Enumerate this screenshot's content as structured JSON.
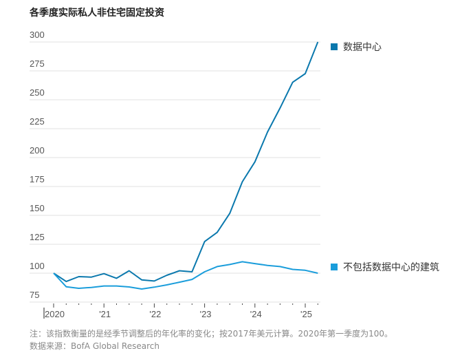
{
  "chart_data": {
    "type": "line",
    "title": "各季度实际私人非住宅固定投资",
    "xlabel": "",
    "ylabel": "",
    "ylim": [
      75,
      300
    ],
    "yticks": [
      75,
      100,
      125,
      150,
      175,
      200,
      225,
      250,
      275,
      300
    ],
    "xtick_labels": [
      "2020",
      "'21",
      "'22",
      "'23",
      "'24",
      "'25"
    ],
    "x": [
      "2020Q1",
      "2020Q2",
      "2020Q3",
      "2020Q4",
      "2021Q1",
      "2021Q2",
      "2021Q3",
      "2021Q4",
      "2022Q1",
      "2022Q2",
      "2022Q3",
      "2022Q4",
      "2023Q1",
      "2023Q2",
      "2023Q3",
      "2023Q4",
      "2024Q1",
      "2024Q2",
      "2024Q3",
      "2024Q4",
      "2025Q1",
      "2025Q2"
    ],
    "grid": true,
    "legend_placement": "right, at line ends",
    "series": [
      {
        "name": "数据中心",
        "color": "#0a78ad",
        "values": [
          100,
          92.8,
          97,
          96.6,
          99.6,
          95.6,
          102.1,
          94.2,
          93.2,
          98.2,
          102.1,
          101.2,
          127.3,
          135.3,
          151.7,
          179.1,
          196.3,
          222.1,
          242.9,
          265.1,
          272.6,
          300
        ]
      },
      {
        "name": "不包括数据中心的建筑",
        "color": "#1a9ddb",
        "values": [
          100,
          88.3,
          86.9,
          87.7,
          88.9,
          88.9,
          88.1,
          86.3,
          87.9,
          89.9,
          92.2,
          94.6,
          101.2,
          105.7,
          107.5,
          109.9,
          108.3,
          106.7,
          105.7,
          103.3,
          102.5,
          100
        ]
      }
    ]
  },
  "footer": {
    "note": "注：该指数衡量的是经季节调整后的年化率的变化；按2017年美元计算。2020年第一季度为100。",
    "source": "数据来源：BofA Global Research"
  }
}
